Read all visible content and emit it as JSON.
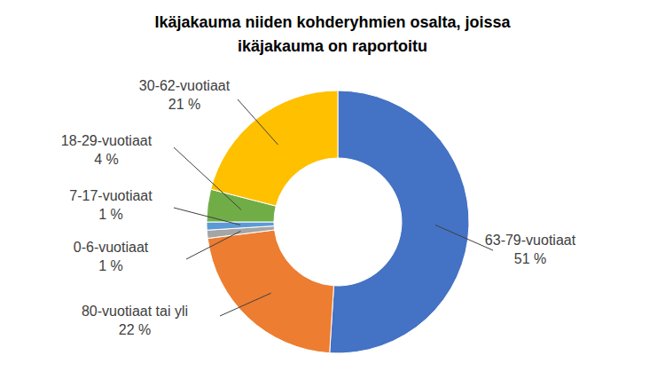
{
  "chart_data": {
    "type": "donut",
    "title": "Ikäjakauma niiden kohderyhmien osalta, joissa ikäjakauma on raportoitu",
    "categories": [
      "63-79-vuotiaat",
      "80-vuotiaat tai yli",
      "0-6-vuotiaat",
      "7-17-vuotiaat",
      "18-29-vuotiaat",
      "30-62-vuotiaat"
    ],
    "values": [
      51,
      22,
      1,
      1,
      4,
      21
    ],
    "value_labels": [
      "51 %",
      "22 %",
      "1 %",
      "1 %",
      "4 %",
      "21 %"
    ],
    "colors": [
      "#4472c4",
      "#ed7d31",
      "#a5a5a5",
      "#5b9bd5",
      "#70ad47",
      "#ffc000"
    ],
    "data_labels": true
  }
}
